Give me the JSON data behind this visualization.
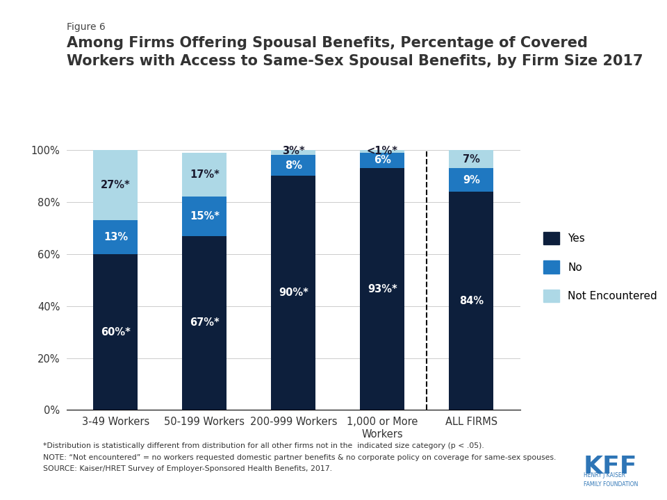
{
  "categories": [
    "3-49 Workers",
    "50-199 Workers",
    "200-999 Workers",
    "1,000 or More\nWorkers",
    "ALL FIRMS"
  ],
  "yes_vals": [
    60,
    67,
    90,
    93,
    84
  ],
  "no_vals": [
    13,
    15,
    8,
    6,
    9
  ],
  "not_enc_vals": [
    27,
    17,
    3,
    1,
    7
  ],
  "yes_labels": [
    "60%*",
    "67%*",
    "90%*",
    "93%*",
    "84%"
  ],
  "no_labels": [
    "13%",
    "15%*",
    "8%",
    "6%",
    "9%"
  ],
  "not_enc_labels": [
    "27%*",
    "17%*",
    "3%*",
    "<1%*",
    "7%"
  ],
  "color_yes": "#0d1f3c",
  "color_no": "#1f78c1",
  "color_not_enc": "#add8e6",
  "figure_label": "Figure 6",
  "title_line1": "Among Firms Offering Spousal Benefits, Percentage of Covered",
  "title_line2": "Workers with Access to Same-Sex Spousal Benefits, by Firm Size 2017",
  "legend_labels": [
    "Yes",
    "No",
    "Not Encountered"
  ],
  "footnote1": "*Distribution is statistically different from distribution for all other firms not in the  indicated size category (p < .05).",
  "footnote2": "NOTE: “Not encountered” = no workers requested domestic partner benefits & no corporate policy on coverage for same-sex spouses.",
  "footnote3": "SOURCE: Kaiser/HRET Survey of Employer-Sponsored Health Benefits, 2017.",
  "bar_width": 0.5,
  "ylim": [
    0,
    100
  ],
  "ytick_labels": [
    "0%",
    "20%",
    "40%",
    "60%",
    "80%",
    "100%"
  ],
  "ytick_vals": [
    0,
    20,
    40,
    60,
    80,
    100
  ],
  "dashed_line_x": 3.5,
  "accent_color": "#2e75b6"
}
